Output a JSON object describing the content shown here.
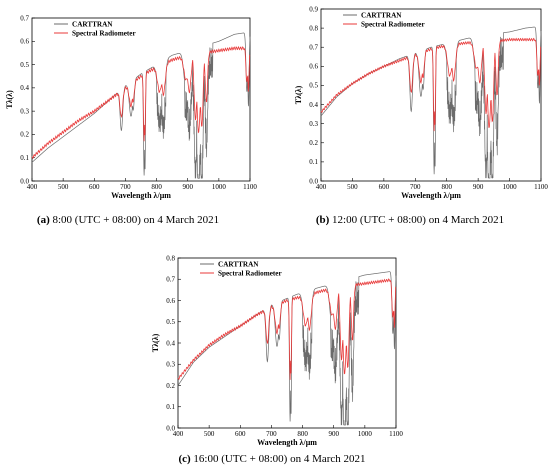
{
  "captions": [
    {
      "letter": "(a)",
      "text": " 8:00 (UTC + 08:00) on 4 March 2021"
    },
    {
      "letter": "(b)",
      "text": " 12:00 (UTC + 08:00) on 4 March 2021"
    },
    {
      "letter": "(c)",
      "text": " 16:00 (UTC + 08:00) on 4 March 2021"
    }
  ],
  "colors": {
    "carttran": "#6b6b6b",
    "radiometer": "#e83a3a"
  },
  "chart_data": [
    {
      "type": "line",
      "xlabel": "Wavelength λ/μm",
      "ylabel": "Tλ(λ)",
      "xlim": [
        400,
        1100
      ],
      "ylim": [
        0,
        0.7
      ],
      "xticks": [
        400,
        500,
        600,
        700,
        800,
        900,
        1000,
        1100
      ],
      "yticks": [
        0.0,
        0.1,
        0.2,
        0.3,
        0.4,
        0.5,
        0.6,
        0.7
      ],
      "legend_position": "top-left",
      "series": [
        {
          "name": "CARTTRAN",
          "x": [
            400,
            450,
            500,
            550,
            600,
            650,
            700,
            750,
            800,
            850,
            900,
            950,
            1000,
            1050,
            1100
          ],
          "y": [
            0.08,
            0.14,
            0.19,
            0.24,
            0.29,
            0.35,
            0.41,
            0.46,
            0.5,
            0.54,
            0.56,
            0.58,
            0.6,
            0.63,
            0.64
          ]
        },
        {
          "name": "Spectral Radiometer",
          "x": [
            400,
            450,
            500,
            550,
            600,
            650,
            700,
            750,
            800,
            850,
            900,
            950,
            1000,
            1050,
            1100
          ],
          "y": [
            0.1,
            0.16,
            0.21,
            0.26,
            0.3,
            0.35,
            0.4,
            0.45,
            0.49,
            0.52,
            0.54,
            0.55,
            0.56,
            0.57,
            0.57
          ]
        }
      ]
    },
    {
      "type": "line",
      "xlabel": "Wavelength λ/μm",
      "ylabel": "Tλ(λ)",
      "xlim": [
        400,
        1100
      ],
      "ylim": [
        0,
        0.9
      ],
      "xticks": [
        400,
        500,
        600,
        700,
        800,
        900,
        1000,
        1100
      ],
      "yticks": [
        0.0,
        0.1,
        0.2,
        0.3,
        0.4,
        0.5,
        0.6,
        0.7,
        0.8,
        0.9
      ],
      "legend_position": "top-left",
      "series": [
        {
          "name": "CARTTRAN",
          "x": [
            400,
            450,
            500,
            550,
            600,
            650,
            700,
            750,
            800,
            850,
            900,
            950,
            1000,
            1050,
            1100
          ],
          "y": [
            0.34,
            0.44,
            0.51,
            0.56,
            0.6,
            0.64,
            0.67,
            0.7,
            0.72,
            0.74,
            0.76,
            0.77,
            0.78,
            0.8,
            0.81
          ]
        },
        {
          "name": "Spectral Radiometer",
          "x": [
            400,
            450,
            500,
            550,
            600,
            650,
            700,
            750,
            800,
            850,
            900,
            950,
            1000,
            1050,
            1100
          ],
          "y": [
            0.36,
            0.45,
            0.51,
            0.56,
            0.6,
            0.63,
            0.66,
            0.69,
            0.71,
            0.72,
            0.73,
            0.73,
            0.74,
            0.74,
            0.74
          ]
        }
      ]
    },
    {
      "type": "line",
      "xlabel": "Wavelength λ/μm",
      "ylabel": "Tλ(λ)",
      "xlim": [
        400,
        1100
      ],
      "ylim": [
        0,
        0.8
      ],
      "xticks": [
        400,
        500,
        600,
        700,
        800,
        900,
        1000,
        1100
      ],
      "yticks": [
        0.0,
        0.1,
        0.2,
        0.3,
        0.4,
        0.5,
        0.6,
        0.7,
        0.8
      ],
      "legend_position": "top-left",
      "series": [
        {
          "name": "CARTTRAN",
          "x": [
            400,
            450,
            500,
            550,
            600,
            650,
            700,
            750,
            800,
            850,
            900,
            950,
            1000,
            1050,
            1100
          ],
          "y": [
            0.2,
            0.31,
            0.38,
            0.43,
            0.48,
            0.53,
            0.58,
            0.61,
            0.64,
            0.66,
            0.68,
            0.7,
            0.72,
            0.73,
            0.74
          ]
        },
        {
          "name": "Spectral Radiometer",
          "x": [
            400,
            450,
            500,
            550,
            600,
            650,
            700,
            750,
            800,
            850,
            900,
            950,
            1000,
            1050,
            1100
          ],
          "y": [
            0.23,
            0.32,
            0.39,
            0.44,
            0.48,
            0.53,
            0.57,
            0.6,
            0.62,
            0.64,
            0.66,
            0.67,
            0.68,
            0.69,
            0.7
          ]
        }
      ]
    }
  ]
}
